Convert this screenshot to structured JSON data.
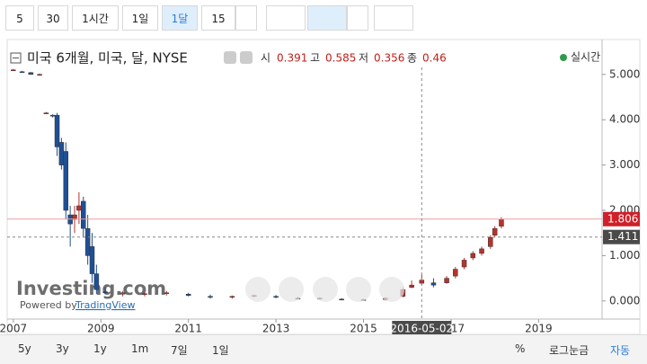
{
  "toolbar": {
    "intervals": [
      "5",
      "30",
      "1시간",
      "1일",
      "1달",
      "15"
    ]
  },
  "chart_data": {
    "type": "candlestick",
    "title": "미국 6개월, 미국, 달, NYSE",
    "ohlc_labels": [
      "시",
      "고",
      "저",
      "종"
    ],
    "status": "실시간",
    "watermark": "Investing.com",
    "powered_by": "Powered by",
    "powered_link": "TradingView",
    "up_color": "#b5332e",
    "down_color": "#1f4f94",
    "x": [
      2007.0,
      2007.2,
      2007.4,
      2007.6,
      2007.75,
      2007.9,
      2008.0,
      2008.1,
      2008.2,
      2008.3,
      2008.4,
      2008.5,
      2008.6,
      2008.7,
      2008.8,
      2008.9,
      2009.1,
      2009.5,
      2010.0,
      2010.5,
      2011.0,
      2011.5,
      2012.0,
      2012.5,
      2013.0,
      2013.5,
      2014.0,
      2014.5,
      2015.0,
      2015.5,
      2015.9,
      2016.1,
      2016.33,
      2016.6,
      2016.9,
      2017.1,
      2017.3,
      2017.5,
      2017.7,
      2017.9,
      2018.0,
      2018.15
    ],
    "open": [
      5.1,
      5.06,
      5.04,
      5.0,
      4.15,
      4.1,
      4.1,
      3.5,
      3.3,
      1.9,
      1.8,
      2.0,
      2.2,
      1.6,
      1.2,
      0.6,
      0.2,
      0.15,
      0.15,
      0.16,
      0.15,
      0.1,
      0.08,
      0.1,
      0.1,
      0.06,
      0.05,
      0.04,
      0.02,
      0.03,
      0.1,
      0.3,
      0.391,
      0.4,
      0.4,
      0.55,
      0.75,
      0.95,
      1.05,
      1.2,
      1.45,
      1.65
    ],
    "high": [
      5.12,
      5.08,
      5.05,
      5.02,
      4.17,
      4.12,
      4.15,
      3.6,
      3.5,
      2.1,
      2.1,
      2.4,
      2.3,
      1.9,
      1.5,
      0.8,
      0.3,
      0.22,
      0.2,
      0.22,
      0.18,
      0.14,
      0.12,
      0.14,
      0.13,
      0.09,
      0.08,
      0.06,
      0.05,
      0.08,
      0.3,
      0.45,
      0.585,
      0.5,
      0.55,
      0.75,
      0.95,
      1.1,
      1.2,
      1.45,
      1.65,
      1.85
    ],
    "low": [
      5.08,
      5.04,
      5.0,
      4.98,
      4.13,
      4.05,
      3.2,
      2.9,
      1.8,
      1.2,
      1.5,
      1.7,
      1.4,
      0.8,
      0.4,
      0.15,
      0.15,
      0.1,
      0.1,
      0.12,
      0.1,
      0.05,
      0.05,
      0.08,
      0.06,
      0.03,
      0.03,
      0.02,
      0.01,
      0.01,
      0.08,
      0.28,
      0.356,
      0.3,
      0.38,
      0.5,
      0.7,
      0.9,
      1.0,
      1.15,
      1.4,
      1.6
    ],
    "close": [
      5.1,
      5.05,
      5.0,
      5.0,
      4.15,
      4.08,
      3.4,
      3.0,
      2.0,
      1.7,
      1.9,
      2.1,
      1.6,
      1.0,
      0.6,
      0.25,
      0.18,
      0.18,
      0.16,
      0.18,
      0.12,
      0.08,
      0.1,
      0.12,
      0.08,
      0.05,
      0.06,
      0.03,
      0.03,
      0.06,
      0.25,
      0.35,
      0.46,
      0.35,
      0.5,
      0.7,
      0.9,
      1.05,
      1.15,
      1.4,
      1.6,
      1.806
    ],
    "xlim": [
      2006.86,
      2020.45
    ],
    "xticks": [
      2007,
      2009,
      2011,
      2013,
      2015,
      2017,
      2019
    ],
    "ylim": [
      -0.4,
      5.75
    ],
    "yticks": [
      {
        "value": 0,
        "label": "0.000"
      },
      {
        "value": 1,
        "label": "1.000"
      },
      {
        "value": 2,
        "label": "2.000"
      },
      {
        "value": 3,
        "label": "3.000"
      },
      {
        "value": 4,
        "label": "4.000"
      },
      {
        "value": 5,
        "label": "5.000"
      }
    ],
    "crosshair": {
      "x_label": "2016-05-02",
      "y": 1.411
    },
    "last_price": 1.806
  },
  "bottom_bar": {
    "ranges": [
      "5y",
      "3y",
      "1y",
      "1m",
      "7일",
      "1일"
    ],
    "options": [
      "%",
      "로그눈금",
      "자동"
    ]
  }
}
